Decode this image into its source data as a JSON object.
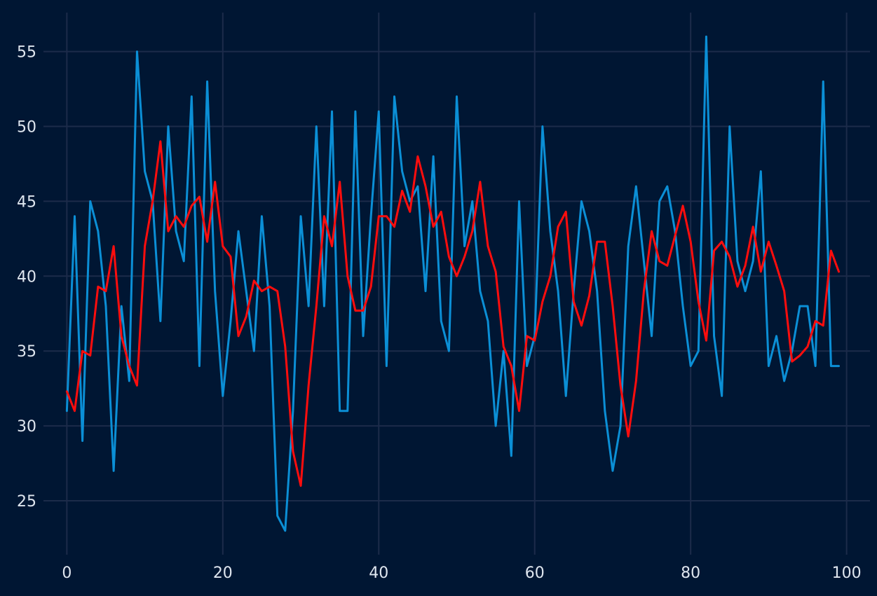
{
  "chart_data": {
    "type": "line",
    "title": "",
    "xlabel": "",
    "ylabel": "",
    "xlim": [
      -3,
      103
    ],
    "ylim": [
      21.4,
      57.6
    ],
    "xticks": [
      0,
      20,
      40,
      60,
      80,
      100
    ],
    "yticks": [
      25,
      30,
      35,
      40,
      45,
      50,
      55
    ],
    "grid": true,
    "legend": "none",
    "background_color": "#001633",
    "grid_color": "#1c2b4a",
    "tick_label_color": "#dfe6ef",
    "series": [
      {
        "color": "#0b8fd6",
        "x": [
          0,
          1,
          2,
          3,
          4,
          5,
          6,
          7,
          8,
          9,
          10,
          11,
          12,
          13,
          14,
          15,
          16,
          17,
          18,
          19,
          20,
          21,
          22,
          23,
          24,
          25,
          26,
          27,
          28,
          29,
          30,
          31,
          32,
          33,
          34,
          35,
          36,
          37,
          38,
          39,
          40,
          41,
          42,
          43,
          44,
          45,
          46,
          47,
          48,
          49,
          50,
          51,
          52,
          53,
          54,
          55,
          56,
          57,
          58,
          59,
          60,
          61,
          62,
          63,
          64,
          65,
          66,
          67,
          68,
          69,
          70,
          71,
          72,
          73,
          74,
          75,
          76,
          77,
          78,
          79,
          80,
          81,
          82,
          83,
          84,
          85,
          86,
          87,
          88,
          89,
          90,
          91,
          92,
          93,
          94,
          95,
          96,
          97,
          98,
          99
        ],
        "y": [
          31,
          44,
          29,
          45,
          43,
          38,
          27,
          38,
          33,
          55,
          47,
          45,
          37,
          50,
          43,
          41,
          52,
          34,
          53,
          39,
          32,
          37,
          43,
          39,
          35,
          44,
          38,
          24,
          23,
          31,
          44,
          38,
          50,
          38,
          51,
          31,
          31,
          51,
          36,
          44,
          51,
          34,
          52,
          47,
          45,
          46,
          39,
          48,
          37,
          35,
          52,
          42,
          45,
          39,
          37,
          30,
          35,
          28,
          45,
          34,
          36,
          50,
          43,
          39,
          32,
          39,
          45,
          43,
          39,
          31,
          27,
          30,
          42,
          46,
          41,
          36,
          45,
          46,
          43,
          38,
          34,
          35,
          56,
          36,
          32,
          50,
          41,
          39,
          41,
          47,
          34,
          36,
          33,
          35,
          38,
          38,
          34,
          53,
          34,
          34
        ]
      },
      {
        "color": "#ff0d0d",
        "x": [
          0,
          1,
          2,
          3,
          4,
          5,
          6,
          7,
          8,
          9,
          10,
          11,
          12,
          13,
          14,
          15,
          16,
          17,
          18,
          19,
          20,
          21,
          22,
          23,
          24,
          25,
          26,
          27,
          28,
          29,
          30,
          31,
          32,
          33,
          34,
          35,
          36,
          37,
          38,
          39,
          40,
          41,
          42,
          43,
          44,
          45,
          46,
          47,
          48,
          49,
          50,
          51,
          52,
          53,
          54,
          55,
          56,
          57,
          58,
          59,
          60,
          61,
          62,
          63,
          64,
          65,
          66,
          67,
          68,
          69,
          70,
          71,
          72,
          73,
          74,
          75,
          76,
          77,
          78,
          79,
          80,
          81,
          82,
          83,
          84,
          85,
          86,
          87,
          88,
          89,
          90,
          91,
          92,
          93,
          94,
          95,
          96,
          97,
          98,
          99
        ],
        "y": [
          32.3,
          31,
          35,
          34.7,
          39.3,
          39,
          42,
          36,
          34,
          32.7,
          42,
          45,
          49,
          43,
          44,
          43.3,
          44.7,
          45.3,
          42.3,
          46.3,
          42,
          41.3,
          36,
          37.3,
          39.7,
          39,
          39.3,
          39,
          35.3,
          28.3,
          26,
          32.7,
          38,
          44,
          42,
          46.3,
          40,
          37.7,
          37.7,
          39.3,
          44,
          44,
          43.3,
          45.7,
          44.3,
          48,
          46,
          43.3,
          44.3,
          41.3,
          40,
          41.3,
          43,
          46.3,
          42,
          40.3,
          35.3,
          34,
          31,
          36,
          35.7,
          38.3,
          40,
          43.3,
          44.3,
          38.3,
          36.7,
          38.7,
          42.3,
          42.3,
          38,
          32.7,
          29.3,
          33,
          39,
          43,
          41,
          40.7,
          42.7,
          44.7,
          42.3,
          38.3,
          35.7,
          41.7,
          42.3,
          41.3,
          39.3,
          40.7,
          43.3,
          40.3,
          42.3,
          40.7,
          39,
          34.3,
          34.7,
          35.3,
          37,
          36.7,
          41.7,
          40.3
        ]
      }
    ]
  }
}
